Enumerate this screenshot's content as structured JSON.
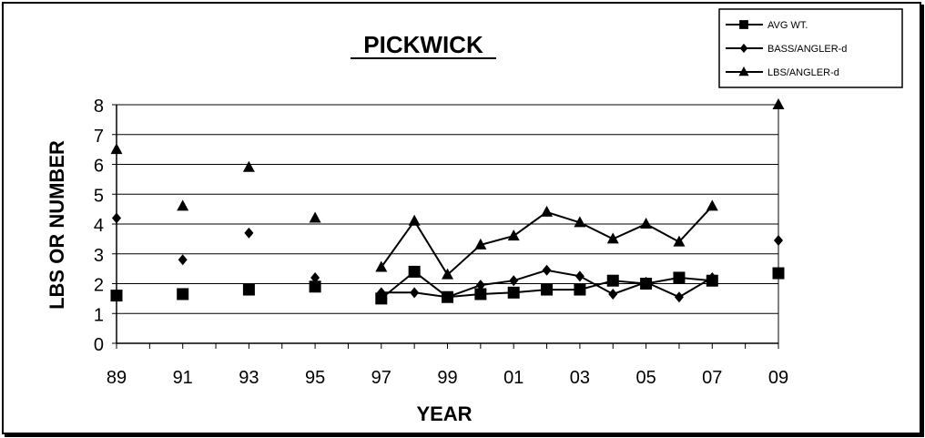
{
  "chart_data": {
    "type": "line",
    "title": "PICKWICK",
    "xlabel": "YEAR",
    "ylabel": "LBS OR NUMBER",
    "ylim": [
      0,
      8
    ],
    "yticks": [
      0,
      1,
      2,
      3,
      4,
      5,
      6,
      7,
      8
    ],
    "x_tick_labels": [
      "89",
      "91",
      "93",
      "95",
      "97",
      "99",
      "01",
      "03",
      "05",
      "07",
      "09"
    ],
    "x_tick_years": [
      1989,
      1991,
      1993,
      1995,
      1997,
      1999,
      2001,
      2003,
      2005,
      2007,
      2009
    ],
    "xlim": [
      1989,
      2009
    ],
    "grid": "horizontal",
    "legend_position": "top-right",
    "series": [
      {
        "name": "AVG WT.",
        "marker": "square",
        "x": [
          1989,
          1991,
          1993,
          1995,
          1997,
          1998,
          1999,
          2000,
          2001,
          2002,
          2003,
          2004,
          2005,
          2006,
          2007,
          2009
        ],
        "values": [
          1.6,
          1.65,
          1.8,
          1.9,
          1.5,
          2.4,
          1.55,
          1.65,
          1.7,
          1.8,
          1.8,
          2.1,
          2.0,
          2.2,
          2.1,
          2.35
        ],
        "connected_from": 1997,
        "connected_to": 2007
      },
      {
        "name": "BASS/ANGLER-d",
        "marker": "diamond",
        "x": [
          1989,
          1991,
          1993,
          1995,
          1997,
          1998,
          1999,
          2000,
          2001,
          2002,
          2003,
          2004,
          2005,
          2006,
          2007,
          2009
        ],
        "values": [
          4.2,
          2.8,
          3.7,
          2.2,
          1.7,
          1.7,
          1.55,
          1.95,
          2.1,
          2.45,
          2.25,
          1.65,
          2.05,
          1.55,
          2.2,
          3.45
        ],
        "connected_from": 1997,
        "connected_to": 2007
      },
      {
        "name": "LBS/ANGLER-d",
        "marker": "triangle",
        "x": [
          1989,
          1991,
          1993,
          1995,
          1997,
          1998,
          1999,
          2000,
          2001,
          2002,
          2003,
          2004,
          2005,
          2006,
          2007,
          2009
        ],
        "values": [
          6.5,
          4.6,
          5.9,
          4.2,
          2.55,
          4.1,
          2.3,
          3.3,
          3.6,
          4.4,
          4.05,
          3.5,
          4.0,
          3.4,
          4.6,
          8.0
        ],
        "connected_from": 1997,
        "connected_to": 2007
      }
    ]
  }
}
